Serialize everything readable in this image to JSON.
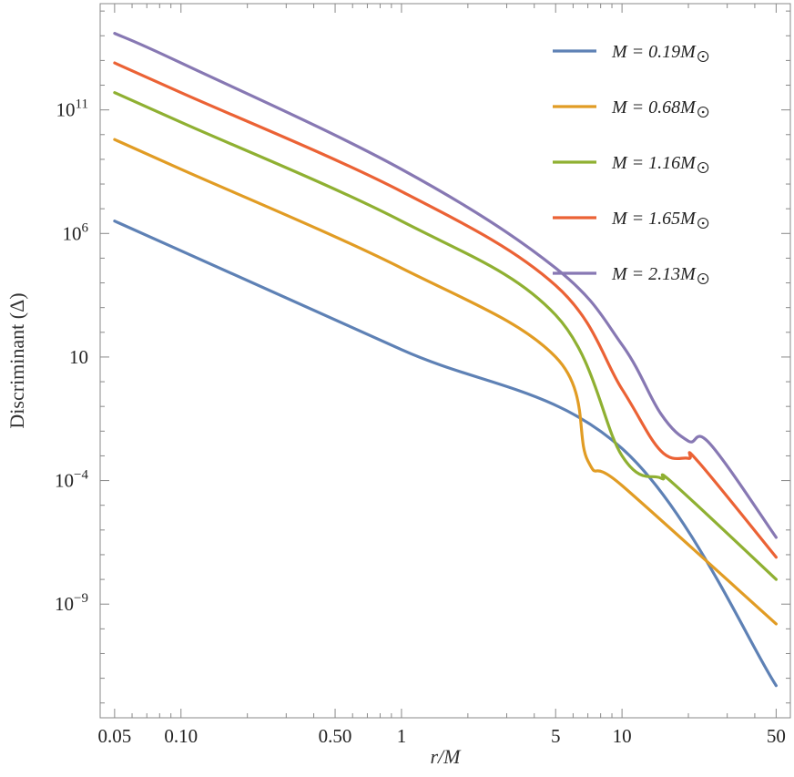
{
  "chart_data": {
    "type": "line",
    "xlabel": "r/M",
    "ylabel": "Discriminant (Δ)",
    "x_scale": "log",
    "y_scale": "log",
    "xlim": [
      0.043,
      58
    ],
    "ylim_log10": [
      -13.6,
      15.3
    ],
    "grid": false,
    "legend_position": "top-right",
    "x_ticks": [
      {
        "value": 0.05,
        "label": "0.05"
      },
      {
        "value": 0.1,
        "label": "0.10"
      },
      {
        "value": 0.5,
        "label": "0.50"
      },
      {
        "value": 1,
        "label": "1"
      },
      {
        "value": 5,
        "label": "5"
      },
      {
        "value": 10,
        "label": "10"
      },
      {
        "value": 50,
        "label": "50"
      }
    ],
    "y_ticks": [
      {
        "log10": 11,
        "base": "10",
        "exp": "11",
        "label": "10^11"
      },
      {
        "log10": 6,
        "base": "10",
        "exp": "6",
        "label": "10^6"
      },
      {
        "log10": 1,
        "base": "10",
        "exp": "",
        "label": "10"
      },
      {
        "log10": -4,
        "base": "10",
        "exp": "−4",
        "label": "10^-4"
      },
      {
        "log10": -9,
        "base": "10",
        "exp": "−9",
        "label": "10^-9"
      }
    ],
    "series": [
      {
        "name": "M = 0.19M⊙",
        "legend_text": "M = 0.19M",
        "color": "#5e81b5",
        "points_log10": [
          [
            0.05,
            6.5
          ],
          [
            0.1,
            5.3
          ],
          [
            1,
            1.3
          ],
          [
            10,
            -2.7
          ],
          [
            50,
            -12.3
          ]
        ]
      },
      {
        "name": "M = 0.68M⊙",
        "legend_text": "M = 0.68M",
        "color": "#e19c24",
        "points_log10": [
          [
            0.05,
            9.8
          ],
          [
            0.1,
            8.6
          ],
          [
            1,
            4.6
          ],
          [
            5,
            1.0
          ],
          [
            7,
            -3.2
          ],
          [
            10,
            -4.2
          ],
          [
            50,
            -9.8
          ]
        ]
      },
      {
        "name": "M = 1.16M⊙",
        "legend_text": "M = 1.16M",
        "color": "#8fb032",
        "points_log10": [
          [
            0.05,
            11.7
          ],
          [
            0.1,
            10.5
          ],
          [
            1,
            6.5
          ],
          [
            5,
            2.7
          ],
          [
            10,
            -3.0
          ],
          [
            15,
            -3.9
          ],
          [
            17,
            -4.1
          ],
          [
            50,
            -8.0
          ]
        ]
      },
      {
        "name": "M = 1.65M⊙",
        "legend_text": "M = 1.65M",
        "color": "#eb6235",
        "points_log10": [
          [
            0.05,
            12.9
          ],
          [
            0.1,
            11.7
          ],
          [
            1,
            7.7
          ],
          [
            5,
            3.9
          ],
          [
            10,
            -0.3
          ],
          [
            15,
            -2.8
          ],
          [
            20,
            -3.1
          ],
          [
            22,
            -3.2
          ],
          [
            50,
            -7.1
          ]
        ]
      },
      {
        "name": "M = 2.13M⊙",
        "legend_text": "M = 2.13M",
        "color": "#8778b3",
        "points_log10": [
          [
            0.05,
            14.1
          ],
          [
            0.1,
            12.9
          ],
          [
            1,
            8.6
          ],
          [
            5,
            4.6
          ],
          [
            10,
            1.5
          ],
          [
            15,
            -1.3
          ],
          [
            20,
            -2.4
          ],
          [
            25,
            -2.5
          ],
          [
            50,
            -6.3
          ]
        ]
      }
    ]
  }
}
